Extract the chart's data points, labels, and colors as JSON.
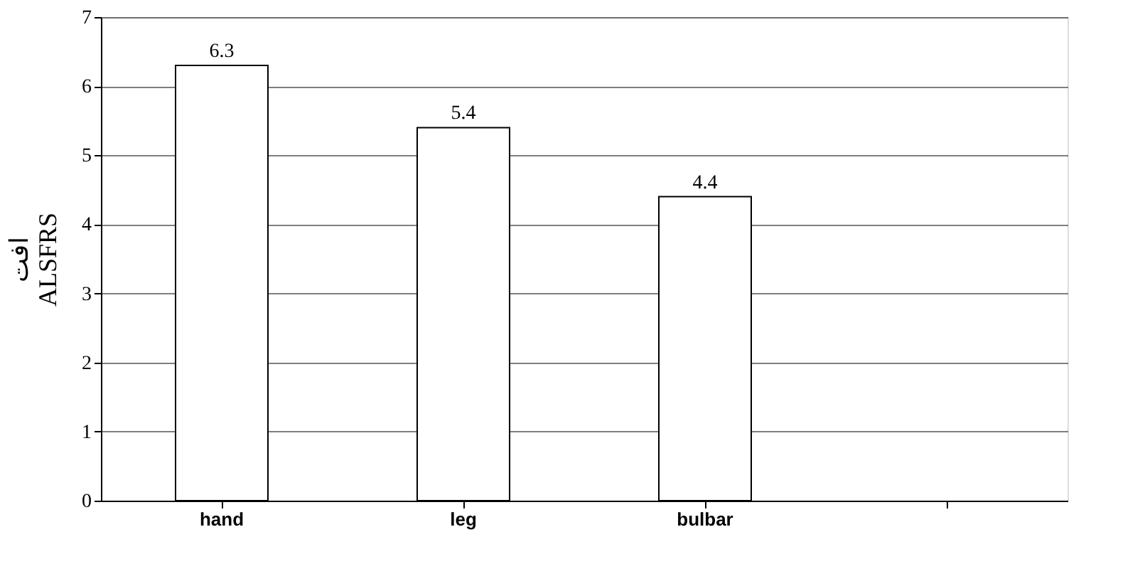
{
  "chart_data": {
    "type": "bar",
    "ylabel": "افت ALSFRS",
    "categories": [
      "hand",
      "leg",
      "bulbar",
      null
    ],
    "values": [
      6.3,
      5.4,
      4.4,
      null
    ],
    "color": "#ffffff",
    "ylim": [
      0,
      7
    ],
    "yticks": [
      0,
      1,
      2,
      3,
      4,
      5,
      6,
      7
    ],
    "grid": "y",
    "data_labels": true
  }
}
